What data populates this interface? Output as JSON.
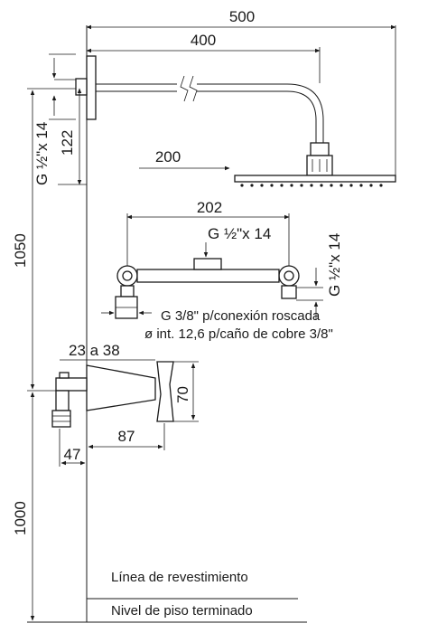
{
  "dimensions": {
    "total_width": "500",
    "arm_length": "400",
    "head_offset": "200",
    "valve_width": "202",
    "arm_height": "122",
    "shower_height": "1050",
    "mixer_height": "1000",
    "wall_range": "23 a 38",
    "handle_height": "70",
    "spout_offset": "87",
    "wall_to_inlet": "47"
  },
  "threads": {
    "arm_thread": "G ½\"x 14",
    "valve_top_thread": "G ½\"x 14",
    "valve_side_thread": "G ½\"x 14"
  },
  "notes": {
    "connection_line1": "G 3/8\" p/conexión roscada",
    "connection_line2": "ø int. 12,6 p/caño de cobre 3/8\""
  },
  "reference_lines": {
    "wall_line": "Línea de revestimiento",
    "floor_line": "Nivel de piso terminado"
  }
}
